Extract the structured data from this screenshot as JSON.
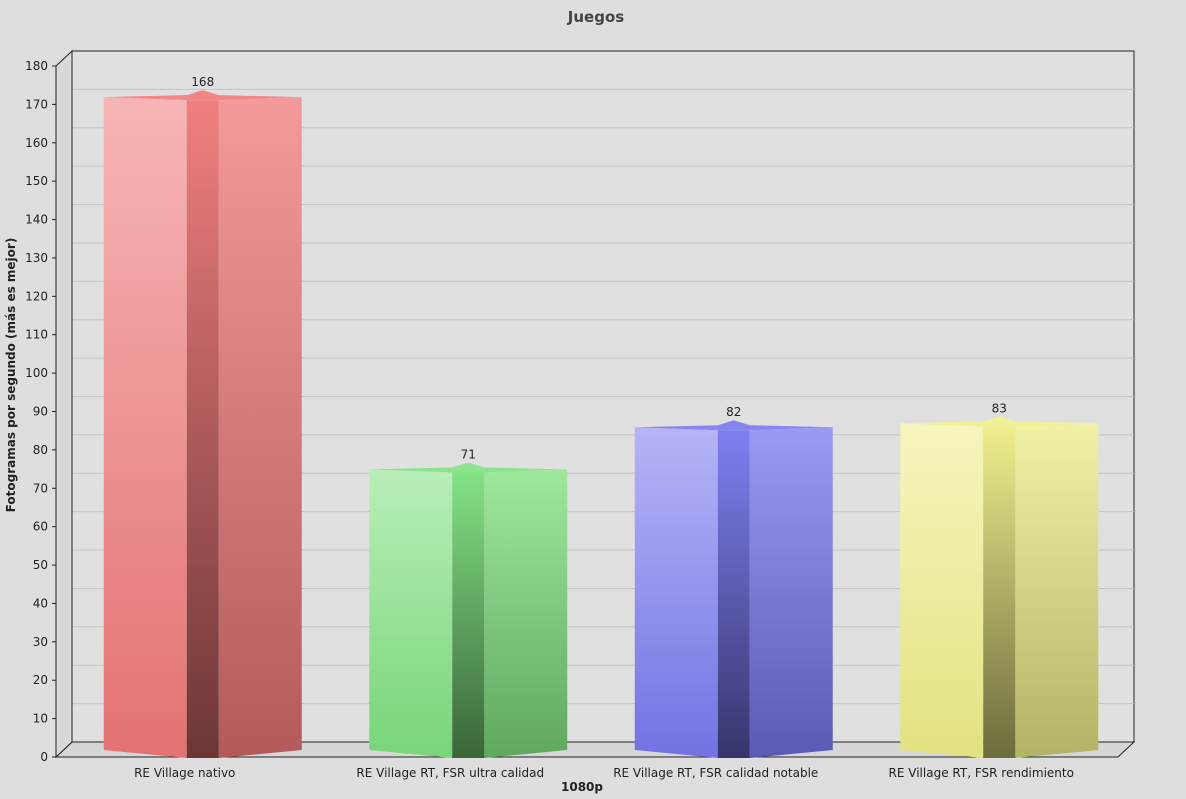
{
  "chart_data": {
    "type": "bar",
    "title": "Juegos",
    "xlabel": "1080p",
    "ylabel": "Fotogramas por segundo (más es mejor)",
    "ylim": [
      0,
      180
    ],
    "yticks": [
      0,
      10,
      20,
      30,
      40,
      50,
      60,
      70,
      80,
      90,
      100,
      110,
      120,
      130,
      140,
      150,
      160,
      170,
      180
    ],
    "categories": [
      "RE Village nativo",
      "RE Village RT, FSR ultra calidad",
      "RE Village RT, FSR calidad notable",
      "RE Village RT, FSR rendimiento"
    ],
    "values": [
      168,
      71,
      82,
      83
    ],
    "data_labels": [
      "168",
      "71",
      "82",
      "83"
    ],
    "colors": [
      "#f07878",
      "#7ee07e",
      "#7878f0",
      "#eeee88"
    ],
    "grid": true,
    "legend": "none"
  }
}
